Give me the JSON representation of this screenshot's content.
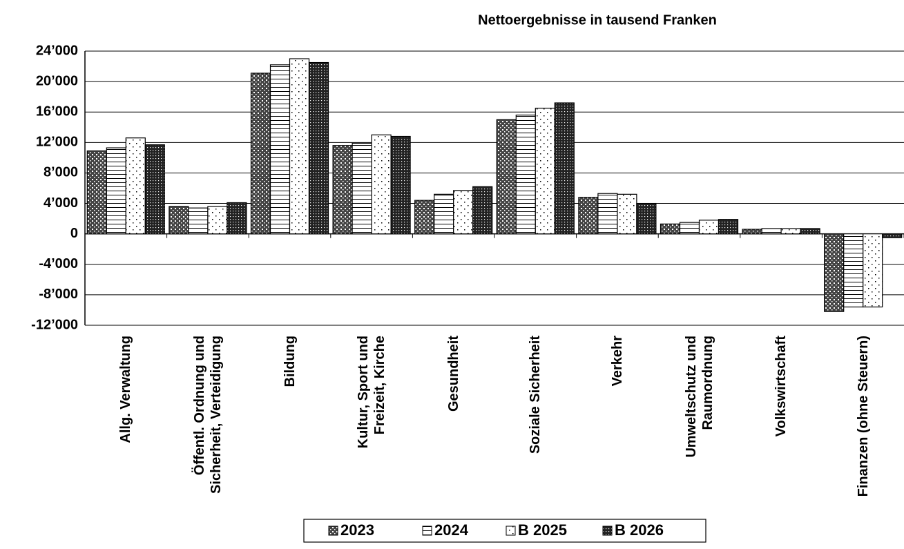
{
  "chart_data": {
    "type": "bar",
    "title": "Nettoergebnisse in tausend Franken",
    "categories": [
      "Allg. Verwaltung",
      "Öffentl. Ordnung und\nSicherheit, Verteidigung",
      "Bildung",
      "Kultur, Sport und\nFreizeit, Kirche",
      "Gesundheit",
      "Soziale Sicherheit",
      "Verkehr",
      "Umweltschutz und\nRaumordnung",
      "Volkswirtschaft",
      "Finanzen (ohne Steuern)"
    ],
    "series": [
      {
        "name": "2023",
        "color": "#000000",
        "values": [
          10900,
          3600,
          21100,
          11600,
          4400,
          15000,
          4800,
          1300,
          600,
          -10200
        ]
      },
      {
        "name": "2024",
        "color": "#000000",
        "values": [
          11300,
          3400,
          22200,
          11900,
          5200,
          15600,
          5300,
          1500,
          700,
          -9600
        ]
      },
      {
        "name": "B 2025",
        "color": "#000000",
        "values": [
          12600,
          3600,
          23000,
          13000,
          5700,
          16500,
          5200,
          1800,
          700,
          -9600
        ]
      },
      {
        "name": "B 2026",
        "color": "#000000",
        "values": [
          11700,
          4100,
          22500,
          12800,
          6200,
          17200,
          4000,
          1900,
          700,
          -500
        ]
      }
    ],
    "ylim": [
      -12000,
      24000
    ],
    "yticks": [
      {
        "value": -12000,
        "label": "-12’000"
      },
      {
        "value": -8000,
        "label": "-8’000"
      },
      {
        "value": -4000,
        "label": "-4’000"
      },
      0,
      {
        "value": 4000,
        "label": "4’000"
      },
      {
        "value": 8000,
        "label": "8’000"
      },
      {
        "value": 12000,
        "label": "12’000"
      },
      {
        "value": 16000,
        "label": "16’000"
      },
      {
        "value": 20000,
        "label": "20’000"
      },
      {
        "value": 24000,
        "label": "24’000"
      }
    ],
    "grid": true,
    "legend": "bottom"
  }
}
